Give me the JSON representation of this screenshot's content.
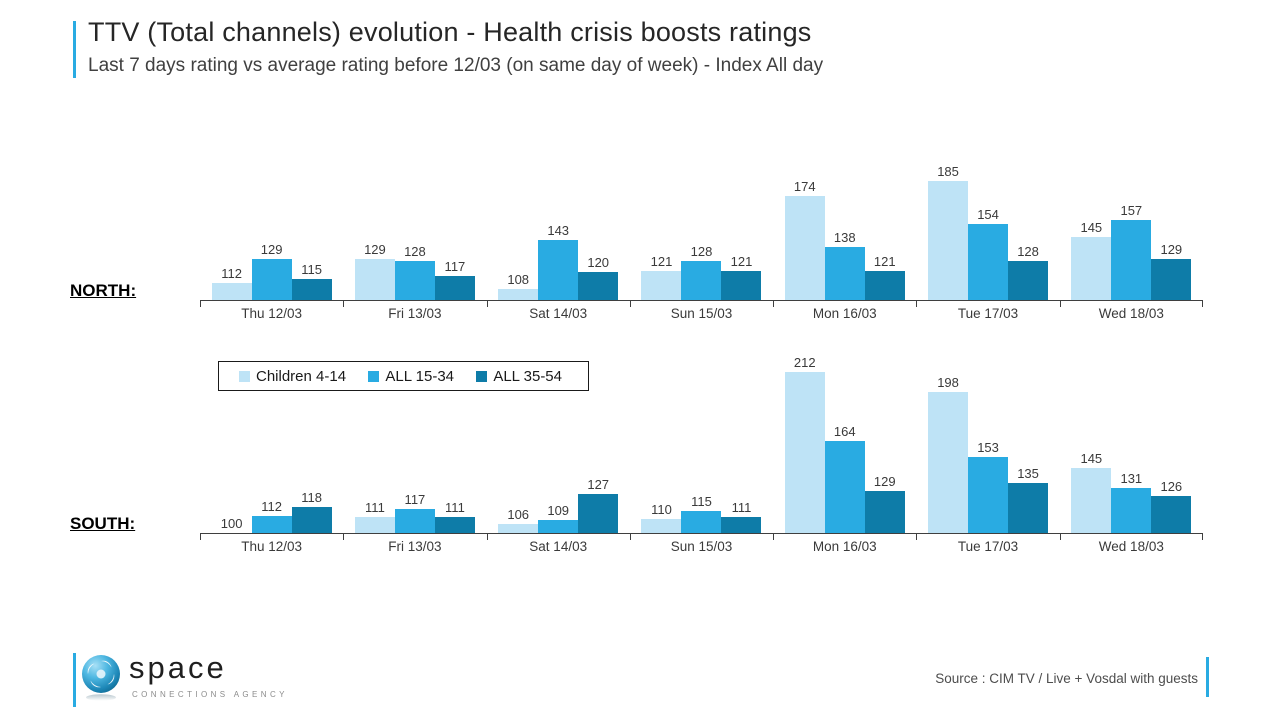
{
  "header": {
    "title": "TTV (Total channels) evolution -  Health crisis boosts ratings",
    "subtitle": "Last 7 days rating vs average rating before 12/03 (on same day of week) - Index All day"
  },
  "legend": {
    "items": [
      {
        "label": "Children 4-14",
        "color": "#BEE3F6"
      },
      {
        "label": "ALL 15-34",
        "color": "#29ABE2"
      },
      {
        "label": "ALL 35-54",
        "color": "#0E7CA8"
      }
    ],
    "position": "between-charts"
  },
  "chart_data": [
    {
      "type": "bar",
      "region_label": "NORTH:",
      "title": "NORTH",
      "categories": [
        "Thu 12/03",
        "Fri 13/03",
        "Sat 14/03",
        "Sun 15/03",
        "Mon 16/03",
        "Tue 17/03",
        "Wed 18/03"
      ],
      "series": [
        {
          "name": "Children 4-14",
          "color": "#BEE3F6",
          "values": [
            112,
            129,
            108,
            121,
            174,
            185,
            145
          ]
        },
        {
          "name": "ALL 15-34",
          "color": "#29ABE2",
          "values": [
            129,
            128,
            143,
            128,
            138,
            154,
            157
          ]
        },
        {
          "name": "ALL 35-54",
          "color": "#0E7CA8",
          "values": [
            115,
            117,
            120,
            121,
            121,
            128,
            129
          ]
        }
      ],
      "ylim": [
        100,
        220
      ],
      "grid": false,
      "value_labels": true
    },
    {
      "type": "bar",
      "region_label": "SOUTH:",
      "title": "SOUTH",
      "categories": [
        "Thu 12/03",
        "Fri 13/03",
        "Sat 14/03",
        "Sun 15/03",
        "Mon 16/03",
        "Tue 17/03",
        "Wed 18/03"
      ],
      "series": [
        {
          "name": "Children 4-14",
          "color": "#BEE3F6",
          "values": [
            100,
            111,
            106,
            110,
            212,
            198,
            145
          ]
        },
        {
          "name": "ALL 15-34",
          "color": "#29ABE2",
          "values": [
            112,
            117,
            109,
            115,
            164,
            153,
            131
          ]
        },
        {
          "name": "ALL 35-54",
          "color": "#0E7CA8",
          "values": [
            118,
            111,
            127,
            111,
            129,
            135,
            126
          ]
        }
      ],
      "ylim": [
        100,
        220
      ],
      "grid": false,
      "value_labels": true
    }
  ],
  "footer": {
    "source": "Source : CIM TV  /  Live + Vosdal with guests",
    "logo_word": "space",
    "logo_tagline": "CONNECTIONS AGENCY"
  }
}
